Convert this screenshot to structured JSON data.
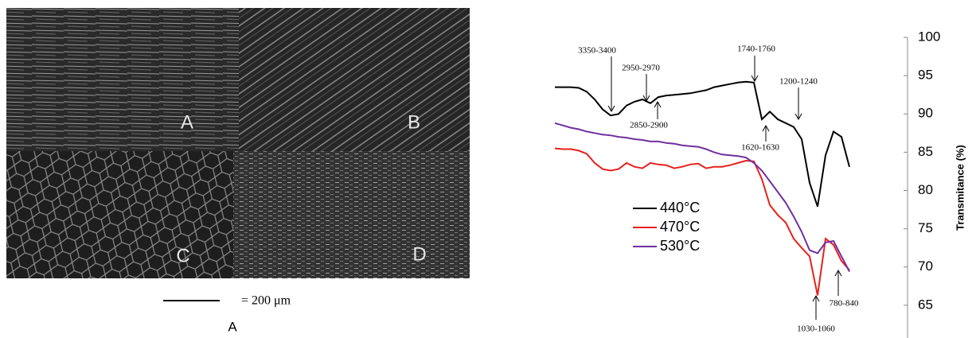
{
  "figure": {
    "panel_labels": [
      "A",
      "B",
      "C",
      "D"
    ],
    "scale_bar": "= 200 μm",
    "caption": "A"
  },
  "chart_data": {
    "type": "line",
    "y_label": "Transmitance (%)",
    "ylim": [
      60,
      100
    ],
    "yticks": [
      65,
      70,
      75,
      80,
      85,
      90,
      95,
      100
    ],
    "legend": "left",
    "annotations": [
      "3350-3400",
      "2950-2970",
      "2850-2900",
      "1740-1760",
      "1200-1240",
      "1620-1630",
      "1030-1060",
      "780-840"
    ],
    "series": [
      {
        "name": "440°C",
        "color": "#000000",
        "values": [
          93.5,
          93.5,
          93.5,
          93.4,
          92.9,
          91.9,
          90.6,
          89.8,
          90.0,
          91.1,
          91.6,
          91.9,
          91.4,
          92.2,
          92.4,
          92.5,
          92.6,
          92.7,
          92.9,
          93.1,
          93.5,
          93.7,
          93.9,
          94.1,
          94.2,
          94.1,
          89.3,
          90.3,
          89.3,
          88.8,
          88.3,
          86.7,
          81.0,
          77.9,
          84.6,
          87.7,
          87.0,
          83.1
        ]
      },
      {
        "name": "470°C",
        "color": "#e8201c",
        "values": [
          85.5,
          85.4,
          85.4,
          85.2,
          84.8,
          83.6,
          82.8,
          82.6,
          82.8,
          83.6,
          83.1,
          82.9,
          83.6,
          83.4,
          83.3,
          82.9,
          83.1,
          83.4,
          83.5,
          82.9,
          83.1,
          83.1,
          83.3,
          83.6,
          83.9,
          83.8,
          81.5,
          78.1,
          76.8,
          75.8,
          73.7,
          72.5,
          71.4,
          66.3,
          73.7,
          72.9,
          70.8,
          69.6
        ]
      },
      {
        "name": "530°C",
        "color": "#7030a0",
        "values": [
          88.8,
          88.5,
          88.2,
          88.0,
          87.7,
          87.5,
          87.3,
          87.2,
          87.0,
          86.9,
          86.7,
          86.6,
          86.4,
          86.4,
          86.2,
          86.1,
          85.9,
          85.8,
          85.7,
          85.4,
          85.0,
          84.7,
          84.6,
          84.5,
          84.3,
          83.6,
          82.6,
          81.2,
          79.8,
          78.4,
          76.6,
          74.6,
          72.2,
          71.8,
          73.2,
          73.4,
          71.4,
          69.4
        ]
      }
    ]
  }
}
